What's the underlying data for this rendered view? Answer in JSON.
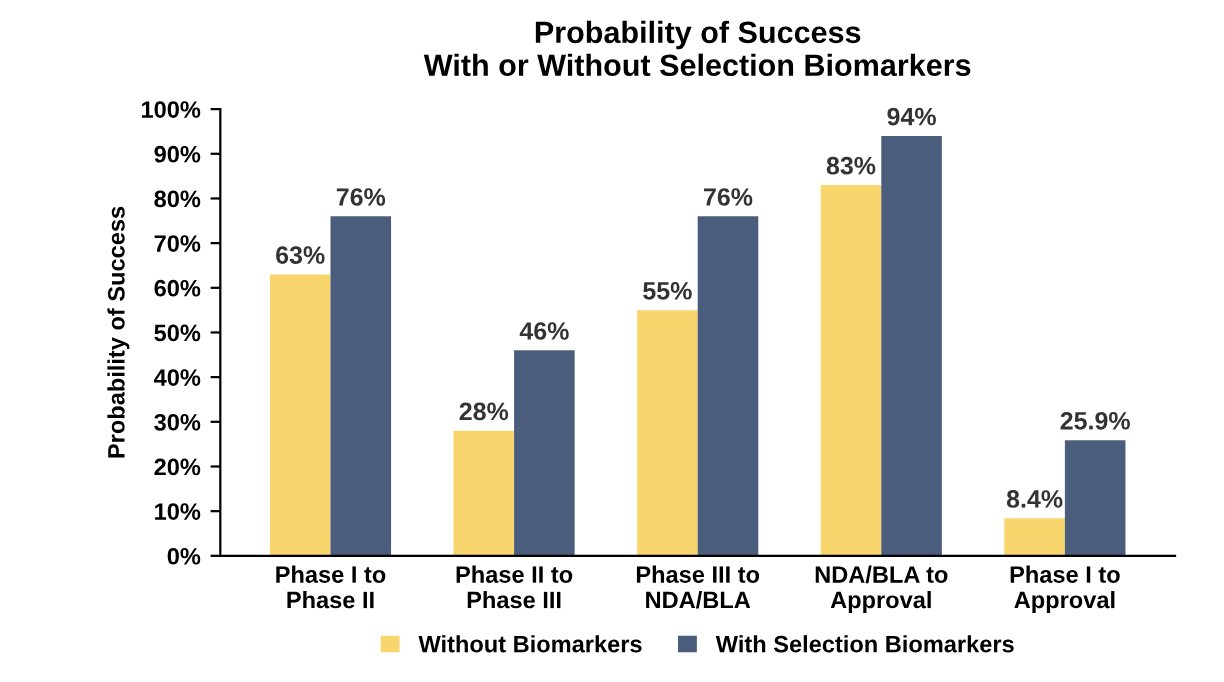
{
  "chart_data": {
    "type": "bar",
    "title": "Probability of Success\nWith or Without Selection Biomarkers",
    "ylabel": "Probability of Success",
    "categories": [
      "Phase I to\nPhase II",
      "Phase II to\nPhase III",
      "Phase III to\nNDA/BLA",
      "NDA/BLA to\nApproval",
      "Phase I to\nApproval"
    ],
    "series": [
      {
        "name": "Without Biomarkers",
        "color": "#f9d56e",
        "values": [
          63,
          28,
          55,
          83,
          8.4
        ],
        "value_labels": [
          "63%",
          "28%",
          "55%",
          "83%",
          "8.4%"
        ]
      },
      {
        "name": "With Selection Biomarkers",
        "color": "#4b5d7d",
        "values": [
          76,
          46,
          76,
          94,
          25.9
        ],
        "value_labels": [
          "76%",
          "46%",
          "76%",
          "94%",
          "25.9%"
        ]
      }
    ],
    "ylim": [
      0,
      100
    ],
    "yticks": [
      {
        "value": 0,
        "label": "0%"
      },
      {
        "value": 10,
        "label": "10%"
      },
      {
        "value": 20,
        "label": "20%"
      },
      {
        "value": 30,
        "label": "30%"
      },
      {
        "value": 40,
        "label": "40%"
      },
      {
        "value": 50,
        "label": "50%"
      },
      {
        "value": 60,
        "label": "60%"
      },
      {
        "value": 70,
        "label": "70%"
      },
      {
        "value": 80,
        "label": "80%"
      },
      {
        "value": 90,
        "label": "90%"
      },
      {
        "value": 100,
        "label": "100%"
      }
    ],
    "grid": false,
    "legend": "bottom"
  }
}
